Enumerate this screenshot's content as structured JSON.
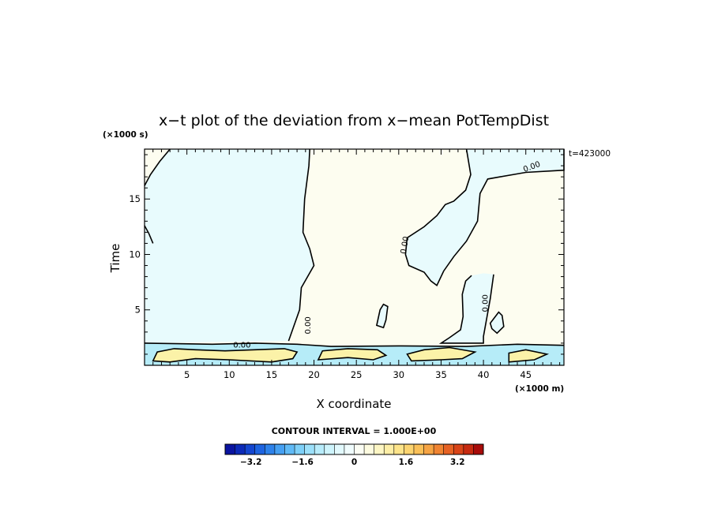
{
  "chart_data": {
    "type": "contour",
    "title": "x−t plot of the deviation from x−mean PotTempDist",
    "xlabel": "X coordinate",
    "ylabel": "Time",
    "x_unit": "(×1000 m)",
    "y_unit": "(×1000 s)",
    "time_note": "t=423000",
    "xlim": [
      0,
      49.5
    ],
    "ylim": [
      0,
      19.5
    ],
    "x_ticks": [
      5,
      10,
      15,
      20,
      25,
      30,
      35,
      40,
      45
    ],
    "x_tick_labels": [
      "5",
      "10",
      "15",
      "20",
      "25",
      "30",
      "35",
      "40",
      "45"
    ],
    "y_ticks": [
      5,
      10,
      15
    ],
    "y_tick_labels": [
      "5",
      "10",
      "15"
    ],
    "contour_interval_text": "CONTOUR INTERVAL = 1.000E+00",
    "contour_labels": [
      "0.00",
      "0.00",
      "0.00",
      "0.00",
      "0.00"
    ],
    "colorbar": {
      "range": [
        -4,
        4
      ],
      "tick_values": [
        -3.2,
        -1.6,
        0,
        1.6,
        3.2
      ],
      "tick_labels": [
        "−3.2",
        "−1.6",
        "0",
        "1.6",
        "3.2"
      ],
      "colors": [
        "#0a14a0",
        "#0c2ab8",
        "#1446d0",
        "#1e64e0",
        "#2e82ea",
        "#46a0f2",
        "#60baf6",
        "#7ed0f8",
        "#9ce0fa",
        "#b8ecfb",
        "#cef4fc",
        "#e2f9fd",
        "#f0fcfd",
        "#fbfdf4",
        "#fdfbe0",
        "#fdf6c4",
        "#fdeea6",
        "#fde48a",
        "#fcd470",
        "#fac058",
        "#f6a444",
        "#f08432",
        "#e66224",
        "#d84418",
        "#c62a10",
        "#a80c0a"
      ]
    },
    "fill_colors": {
      "slightly_negative": "#e8fbfd",
      "slightly_positive": "#fdfdf0",
      "negative": "#b6ecf8",
      "positive": "#fbf2a8"
    }
  }
}
